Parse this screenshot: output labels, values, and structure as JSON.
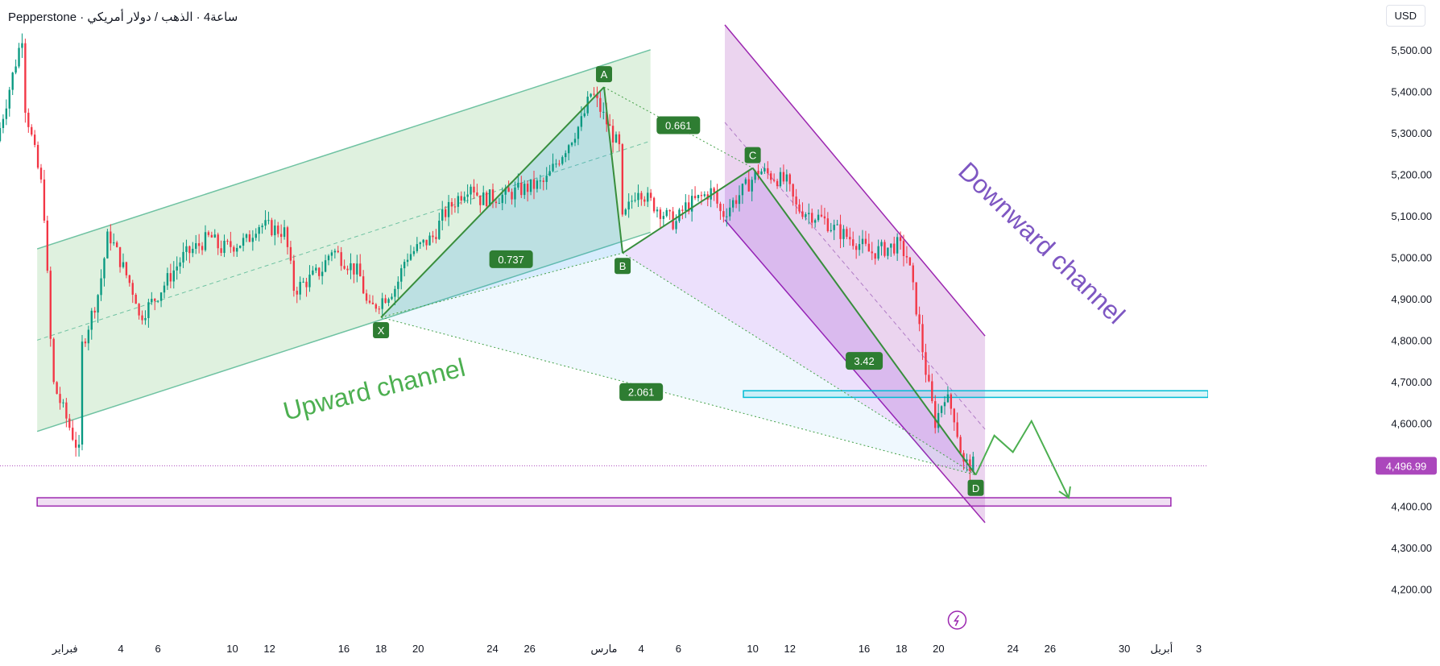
{
  "header": {
    "title": "Pepperstone · ساعة4 · الذهب / دولار أمريكي",
    "currency": "USD"
  },
  "chart_data": {
    "type": "candlestick",
    "symbol": "Pepperstone · ساعة4 · الذهب / دولار أمريكي",
    "currency": "USD",
    "ylim": [
      4160,
      5620
    ],
    "y_ticks": [
      4200,
      4300,
      4400,
      4500,
      4600,
      4700,
      4800,
      4900,
      5000,
      5100,
      5200,
      5300,
      5400,
      5500
    ],
    "y_tick_labels": [
      "4,200.00",
      "4,300.00",
      "4,400.00",
      "4,500.00",
      "4,600.00",
      "4,700.00",
      "4,800.00",
      "4,900.00",
      "5,000.00",
      "5,100.00",
      "5,200.00",
      "5,300.00",
      "5,400.00",
      "5,500.00"
    ],
    "x_ticks": [
      {
        "date": "2026-02-01",
        "label": "فبراير"
      },
      {
        "date": "2026-02-04",
        "label": "4"
      },
      {
        "date": "2026-02-06",
        "label": "6"
      },
      {
        "date": "2026-02-10",
        "label": "10"
      },
      {
        "date": "2026-02-12",
        "label": "12"
      },
      {
        "date": "2026-02-16",
        "label": "16"
      },
      {
        "date": "2026-02-18",
        "label": "18"
      },
      {
        "date": "2026-02-20",
        "label": "20"
      },
      {
        "date": "2026-02-24",
        "label": "24"
      },
      {
        "date": "2026-02-26",
        "label": "26"
      },
      {
        "date": "2026-03-02",
        "label": "مارس"
      },
      {
        "date": "2026-03-04",
        "label": "4"
      },
      {
        "date": "2026-03-06",
        "label": "6"
      },
      {
        "date": "2026-03-10",
        "label": "10"
      },
      {
        "date": "2026-03-12",
        "label": "12"
      },
      {
        "date": "2026-03-16",
        "label": "16"
      },
      {
        "date": "2026-03-18",
        "label": "18"
      },
      {
        "date": "2026-03-20",
        "label": "20"
      },
      {
        "date": "2026-03-24",
        "label": "24"
      },
      {
        "date": "2026-03-26",
        "label": "26"
      },
      {
        "date": "2026-03-30",
        "label": "30"
      },
      {
        "date": "2026-04-01",
        "label": "أبريل"
      },
      {
        "date": "2026-04-03",
        "label": "3"
      }
    ],
    "price_path": [
      [
        "2026-01-29",
        5280
      ],
      [
        "2026-01-30",
        5560
      ],
      [
        "2026-01-30",
        5480
      ],
      [
        "2026-01-31",
        5150
      ],
      [
        "2026-02-01",
        4700
      ],
      [
        "2026-02-02",
        4520
      ],
      [
        "2026-02-02",
        4700
      ],
      [
        "2026-02-03",
        4920
      ],
      [
        "2026-02-04",
        5060
      ],
      [
        "2026-02-05",
        4900
      ],
      [
        "2026-02-05",
        4820
      ],
      [
        "2026-02-06",
        4900
      ],
      [
        "2026-02-08",
        5000
      ],
      [
        "2026-02-09",
        5050
      ],
      [
        "2026-02-10",
        5020
      ],
      [
        "2026-02-11",
        5040
      ],
      [
        "2026-02-12",
        5080
      ],
      [
        "2026-02-13",
        5060
      ],
      [
        "2026-02-14",
        4920
      ],
      [
        "2026-02-15",
        4970
      ],
      [
        "2026-02-16",
        5020
      ],
      [
        "2026-02-17",
        4960
      ],
      [
        "2026-02-18",
        4870
      ],
      [
        "2026-02-19",
        4930
      ],
      [
        "2026-02-20",
        5000
      ],
      [
        "2026-02-21",
        5050
      ],
      [
        "2026-02-22",
        5100
      ],
      [
        "2026-02-23",
        5180
      ],
      [
        "2026-02-24",
        5140
      ],
      [
        "2026-02-25",
        5150
      ],
      [
        "2026-02-26",
        5160
      ],
      [
        "2026-02-27",
        5180
      ],
      [
        "2026-02-28",
        5220
      ],
      [
        "2026-03-01",
        5330
      ],
      [
        "2026-03-02",
        5400
      ],
      [
        "2026-03-03",
        5260
      ],
      [
        "2026-03-03",
        5020
      ],
      [
        "2026-03-04",
        5170
      ],
      [
        "2026-03-05",
        5140
      ],
      [
        "2026-03-06",
        5080
      ],
      [
        "2026-03-07",
        5120
      ],
      [
        "2026-03-08",
        5160
      ],
      [
        "2026-03-09",
        5100
      ],
      [
        "2026-03-10",
        5180
      ],
      [
        "2026-03-11",
        5210
      ],
      [
        "2026-03-12",
        5180
      ],
      [
        "2026-03-13",
        5120
      ],
      [
        "2026-03-14",
        5090
      ],
      [
        "2026-03-15",
        5070
      ],
      [
        "2026-03-16",
        5030
      ],
      [
        "2026-03-17",
        5010
      ],
      [
        "2026-03-18",
        5030
      ],
      [
        "2026-03-19",
        5000
      ],
      [
        "2026-03-19",
        4870
      ],
      [
        "2026-03-20",
        4720
      ],
      [
        "2026-03-20",
        4600
      ],
      [
        "2026-03-21",
        4670
      ],
      [
        "2026-03-21",
        4620
      ],
      [
        "2026-03-22",
        4500
      ]
    ],
    "current_price": 4496.99,
    "current_price_label": "4,496.99",
    "annotations": {
      "upward_channel_label": "Upward channel",
      "downward_channel_label": "Downward channel",
      "upward_channel": {
        "start": "2026-01-31",
        "end": "2026-03-05",
        "lower_start": 4580,
        "lower_end": 5060,
        "upper_start": 5020,
        "upper_end": 5500
      },
      "downward_channel": {
        "start": "2026-03-09",
        "end": "2026-03-23",
        "upper_start": 5560,
        "upper_end": 4810,
        "lower_start": 5090,
        "lower_end": 4360
      },
      "harmonic_points": [
        {
          "label": "X",
          "date": "2026-02-18",
          "price": 4855
        },
        {
          "label": "A",
          "date": "2026-03-02",
          "price": 5410
        },
        {
          "label": "B",
          "date": "2026-03-03",
          "price": 5010
        },
        {
          "label": "C",
          "date": "2026-03-10",
          "price": 5215
        },
        {
          "label": "D",
          "date": "2026-03-22",
          "price": 4475
        }
      ],
      "ratios": [
        {
          "label": "0.661",
          "date": "2026-03-06",
          "price": 5318
        },
        {
          "label": "0.737",
          "date": "2026-02-25",
          "price": 4995
        },
        {
          "label": "3.42",
          "date": "2026-03-16",
          "price": 4750
        },
        {
          "label": "2.061",
          "date": "2026-03-04",
          "price": 4675
        }
      ],
      "resistance_zone": {
        "start": "2026-03-10",
        "end": "2026-04-04",
        "low": 4662,
        "high": 4678
      },
      "support_zone": {
        "start": "2026-01-31",
        "end": "2026-04-02",
        "low": 4400,
        "high": 4420
      },
      "projection_path": [
        [
          "2026-03-22",
          4475
        ],
        [
          "2026-03-23",
          4570
        ],
        [
          "2026-03-24",
          4530
        ],
        [
          "2026-03-25",
          4605
        ],
        [
          "2026-03-27",
          4420
        ]
      ]
    }
  }
}
